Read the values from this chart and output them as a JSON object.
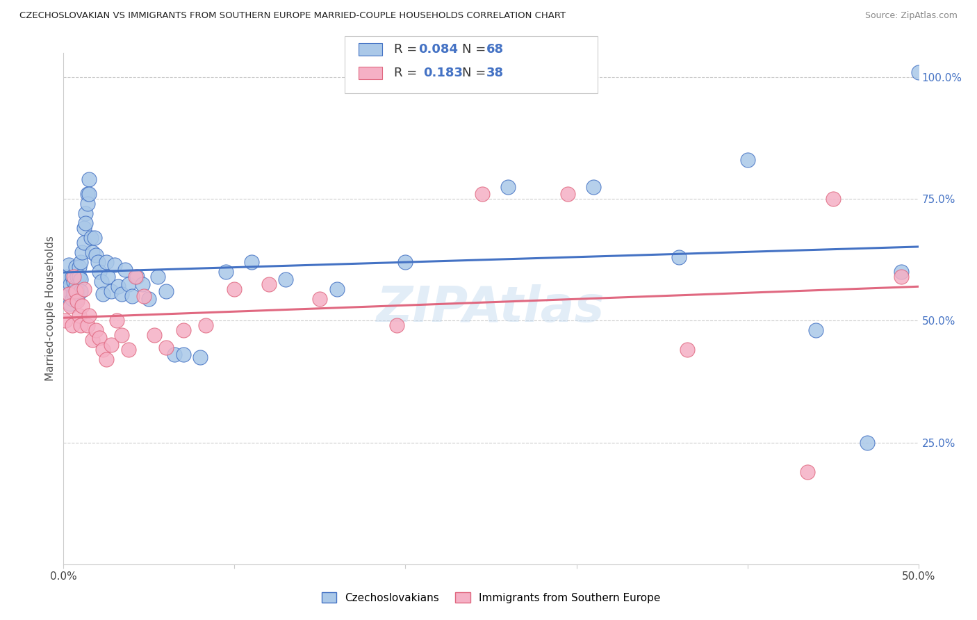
{
  "title": "CZECHOSLOVAKIAN VS IMMIGRANTS FROM SOUTHERN EUROPE MARRIED-COUPLE HOUSEHOLDS CORRELATION CHART",
  "source": "Source: ZipAtlas.com",
  "ylabel": "Married-couple Households",
  "xlim": [
    0.0,
    0.5
  ],
  "ylim": [
    0.0,
    1.05
  ],
  "ytick_labels": [
    "25.0%",
    "50.0%",
    "75.0%",
    "100.0%"
  ],
  "ytick_vals": [
    0.25,
    0.5,
    0.75,
    1.0
  ],
  "blue_R": "0.084",
  "blue_N": "68",
  "pink_R": "0.183",
  "pink_N": "38",
  "legend_label1": "Czechoslovakians",
  "legend_label2": "Immigrants from Southern Europe",
  "blue_color": "#aac8e8",
  "pink_color": "#f5b0c5",
  "blue_line_color": "#4472c4",
  "pink_line_color": "#e06880",
  "watermark": "ZIPAtlas",
  "blue_x": [
    0.001,
    0.002,
    0.003,
    0.003,
    0.004,
    0.004,
    0.005,
    0.005,
    0.006,
    0.006,
    0.006,
    0.007,
    0.007,
    0.008,
    0.008,
    0.008,
    0.009,
    0.009,
    0.01,
    0.01,
    0.01,
    0.011,
    0.012,
    0.012,
    0.013,
    0.013,
    0.014,
    0.014,
    0.015,
    0.015,
    0.016,
    0.017,
    0.018,
    0.019,
    0.02,
    0.021,
    0.022,
    0.023,
    0.025,
    0.026,
    0.028,
    0.03,
    0.032,
    0.034,
    0.036,
    0.038,
    0.04,
    0.043,
    0.046,
    0.05,
    0.055,
    0.06,
    0.065,
    0.07,
    0.08,
    0.095,
    0.11,
    0.13,
    0.16,
    0.2,
    0.26,
    0.31,
    0.36,
    0.4,
    0.44,
    0.47,
    0.49,
    0.5
  ],
  "blue_y": [
    0.565,
    0.59,
    0.555,
    0.615,
    0.535,
    0.575,
    0.59,
    0.545,
    0.56,
    0.58,
    0.555,
    0.61,
    0.57,
    0.59,
    0.56,
    0.545,
    0.61,
    0.59,
    0.62,
    0.585,
    0.56,
    0.64,
    0.69,
    0.66,
    0.72,
    0.7,
    0.76,
    0.74,
    0.79,
    0.76,
    0.67,
    0.64,
    0.67,
    0.635,
    0.62,
    0.6,
    0.58,
    0.555,
    0.62,
    0.59,
    0.56,
    0.615,
    0.57,
    0.555,
    0.605,
    0.575,
    0.55,
    0.59,
    0.575,
    0.545,
    0.59,
    0.56,
    0.43,
    0.43,
    0.425,
    0.6,
    0.62,
    0.585,
    0.565,
    0.62,
    0.775,
    0.775,
    0.63,
    0.83,
    0.48,
    0.25,
    0.6,
    1.01
  ],
  "pink_x": [
    0.001,
    0.003,
    0.004,
    0.005,
    0.006,
    0.007,
    0.008,
    0.009,
    0.01,
    0.011,
    0.012,
    0.014,
    0.015,
    0.017,
    0.019,
    0.021,
    0.023,
    0.025,
    0.028,
    0.031,
    0.034,
    0.038,
    0.042,
    0.047,
    0.053,
    0.06,
    0.07,
    0.083,
    0.1,
    0.12,
    0.15,
    0.195,
    0.245,
    0.295,
    0.365,
    0.435,
    0.45,
    0.49
  ],
  "pink_y": [
    0.5,
    0.555,
    0.53,
    0.49,
    0.59,
    0.56,
    0.54,
    0.51,
    0.49,
    0.53,
    0.565,
    0.49,
    0.51,
    0.46,
    0.48,
    0.465,
    0.44,
    0.42,
    0.45,
    0.5,
    0.47,
    0.44,
    0.59,
    0.55,
    0.47,
    0.445,
    0.48,
    0.49,
    0.565,
    0.575,
    0.545,
    0.49,
    0.76,
    0.76,
    0.44,
    0.19,
    0.75,
    0.59
  ]
}
